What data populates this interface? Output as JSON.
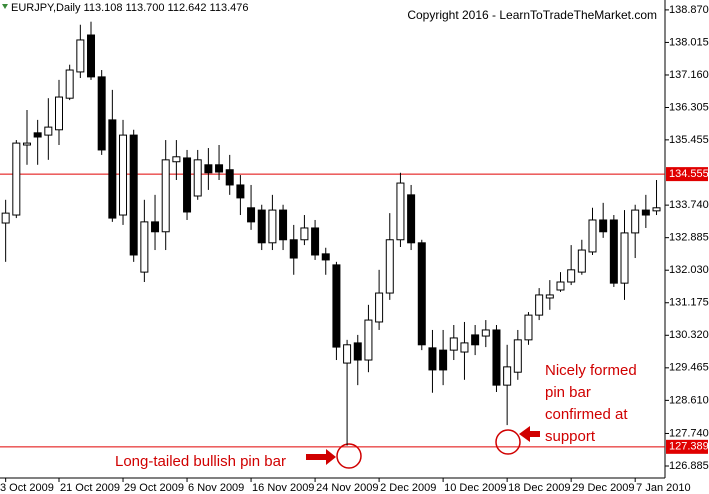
{
  "chart_data": {
    "type": "candlestick",
    "header": "EURJPY,Daily  113.108 113.700 112.642 113.476",
    "copyright": "Copyright 2016 - LearnToTradeTheMarket.com",
    "categories": [
      "3 Oct 2009",
      null,
      null,
      null,
      null,
      "21 Oct 2009",
      null,
      null,
      null,
      null,
      null,
      "29 Oct 2009",
      null,
      null,
      null,
      null,
      null,
      "6 Nov 2009",
      null,
      null,
      null,
      null,
      null,
      "16 Nov 2009",
      null,
      null,
      null,
      null,
      null,
      "24 Nov 2009",
      null,
      null,
      null,
      null,
      null,
      "2 Dec 2009",
      null,
      null,
      null,
      null,
      null,
      "10 Dec 2009",
      null,
      null,
      null,
      null,
      null,
      "18 Dec 2009",
      null,
      null,
      null,
      null,
      null,
      "29 Dec 2009",
      null,
      null,
      null,
      null,
      null,
      "7 Jan 2010",
      null,
      null
    ],
    "open": [
      133.27,
      133.48,
      135.32,
      135.64,
      135.58,
      135.72,
      136.55,
      137.24,
      138.21,
      137.11,
      135.98,
      133.48,
      135.58,
      131.98,
      133.3,
      133.04,
      134.88,
      134.98,
      133.98,
      134.8,
      134.8,
      134.67,
      134.27,
      133.67,
      133.61,
      132.75,
      133.61,
      132.83,
      132.83,
      133.14,
      132.46,
      132.17,
      129.59,
      130.12,
      129.67,
      130.67,
      131.43,
      132.83,
      134.01,
      132.75,
      129.99,
      129.93,
      129.93,
      129.88,
      130.33,
      130.3,
      130.46,
      129.01,
      129.35,
      130.2,
      130.85,
      131.3,
      131.51,
      131.72,
      131.98,
      132.51,
      133.35,
      133.35,
      131.69,
      133.01,
      133.61,
      133.59
    ],
    "high": [
      133.88,
      135.45,
      136.24,
      135.98,
      136.55,
      137.03,
      137.43,
      138.48,
      138.56,
      137.29,
      136.77,
      135.98,
      135.72,
      133.88,
      134.01,
      135.45,
      135.45,
      135.19,
      135.19,
      135.24,
      135.32,
      135.06,
      134.53,
      134.27,
      133.75,
      134.01,
      133.75,
      133.22,
      133.48,
      133.35,
      132.62,
      132.25,
      130.2,
      130.33,
      131.12,
      132.04,
      133.53,
      134.59,
      134.27,
      132.83,
      130.46,
      130.46,
      130.59,
      130.67,
      130.59,
      130.72,
      130.59,
      130.07,
      130.46,
      130.93,
      131.56,
      131.77,
      131.98,
      132.69,
      132.83,
      133.67,
      133.8,
      133.48,
      133.61,
      133.75,
      134.01,
      134.4
    ],
    "low": [
      132.25,
      133.4,
      134.8,
      134.8,
      134.93,
      135.32,
      136.5,
      137.08,
      137.03,
      135.06,
      133.3,
      133.22,
      132.25,
      131.72,
      132.56,
      132.56,
      134.4,
      133.35,
      133.88,
      134.14,
      134.4,
      134.01,
      133.48,
      133.09,
      132.56,
      132.56,
      132.56,
      131.91,
      132.69,
      132.3,
      131.91,
      129.67,
      127.42,
      129.01,
      129.35,
      130.46,
      131.25,
      132.64,
      132.56,
      129.93,
      128.81,
      129.01,
      129.67,
      129.15,
      129.8,
      130.01,
      128.83,
      127.96,
      129.15,
      130.07,
      130.72,
      130.99,
      131.46,
      131.64,
      131.91,
      132.43,
      132.88,
      131.59,
      131.25,
      132.35,
      133.14,
      133.48
    ],
    "close": [
      133.53,
      135.37,
      135.37,
      135.53,
      135.79,
      136.58,
      137.29,
      138.08,
      137.11,
      135.19,
      133.4,
      135.58,
      132.43,
      133.3,
      133.04,
      134.93,
      135.01,
      133.56,
      134.93,
      134.59,
      134.61,
      134.27,
      133.93,
      133.3,
      132.75,
      133.61,
      132.83,
      132.35,
      133.14,
      132.43,
      132.3,
      130.01,
      130.07,
      129.67,
      130.72,
      131.43,
      132.83,
      134.32,
      132.75,
      130.07,
      129.41,
      129.41,
      130.25,
      130.12,
      130.07,
      130.46,
      129.01,
      129.49,
      130.2,
      130.85,
      131.38,
      131.38,
      131.72,
      132.04,
      132.56,
      133.35,
      133.04,
      131.69,
      133.01,
      133.61,
      133.48,
      133.67
    ],
    "up_color": "#ffffff",
    "down_color": "#000000",
    "ylim": [
      126.57,
      139.13
    ],
    "yticks": [
      {
        "value": 138.87,
        "label": "138.870"
      },
      138.015,
      {
        "value": 137.16,
        "label": "137.160"
      },
      136.305,
      135.455,
      {
        "value": 133.74,
        "label": "133.740"
      },
      132.885,
      {
        "value": 132.03,
        "label": "132.030"
      },
      131.175,
      {
        "value": 130.32,
        "label": "130.320"
      },
      129.465,
      {
        "value": 128.61,
        "label": "128.610"
      },
      {
        "value": 127.74,
        "label": "127.740"
      },
      126.885
    ],
    "hlines": [
      {
        "value": 134.555,
        "color": "#e00000"
      },
      {
        "value": 127.389,
        "color": "#e00000"
      }
    ],
    "annotations": [
      {
        "text": "Long-tailed bullish pin bar",
        "color": "#d00000"
      },
      {
        "lines": [
          "Nicely formed",
          "pin bar",
          "confirmed at",
          "support"
        ],
        "color": "#d00000"
      }
    ]
  }
}
